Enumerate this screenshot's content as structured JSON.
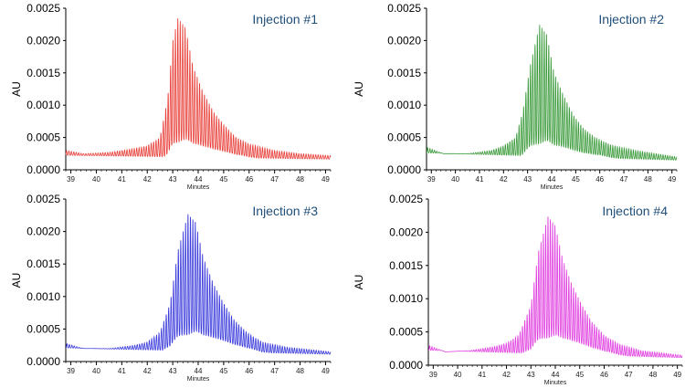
{
  "chart_data": [
    {
      "type": "line",
      "annotation": "Injection #1",
      "xlabel": "Minutes",
      "ylabel": "AU",
      "xlim": [
        38.8,
        49.2
      ],
      "ylim": [
        0,
        0.0025
      ],
      "xticks": [
        "39",
        "40",
        "41",
        "42",
        "43",
        "44",
        "45",
        "46",
        "47",
        "48",
        "49"
      ],
      "yticks": [
        "0.0000",
        "0.0005",
        "0.0010",
        "0.0015",
        "0.0020",
        "0.0025"
      ],
      "color": "#e8403a",
      "peak_x": 43.2,
      "peak_y": 0.00235,
      "baseline_start": 0.0003,
      "baseline_end": 0.00022,
      "x": [
        38.8,
        39.5,
        40.5,
        41.5,
        42.0,
        42.5,
        42.8,
        43.0,
        43.2,
        43.5,
        43.8,
        44.2,
        44.6,
        45.0,
        45.5,
        46.0,
        47.0,
        48.0,
        49.2
      ],
      "y": [
        0.0003,
        0.00025,
        0.00027,
        0.00033,
        0.00037,
        0.0005,
        0.0011,
        0.002,
        0.00235,
        0.0022,
        0.0016,
        0.0012,
        0.0009,
        0.0007,
        0.0005,
        0.0004,
        0.0003,
        0.00025,
        0.00022
      ]
    },
    {
      "type": "line",
      "annotation": "Injection #2",
      "xlabel": "Minutes",
      "ylabel": "AU",
      "xlim": [
        38.8,
        49.2
      ],
      "ylim": [
        0,
        0.0025
      ],
      "xticks": [
        "39",
        "40",
        "41",
        "42",
        "43",
        "44",
        "45",
        "46",
        "47",
        "48",
        "49"
      ],
      "yticks": [
        "0.0000",
        "0.0005",
        "0.0010",
        "0.0015",
        "0.0020",
        "0.0025"
      ],
      "color": "#3a9a3a",
      "peak_x": 43.5,
      "peak_y": 0.00225,
      "baseline_start": 0.00035,
      "baseline_end": 0.0002,
      "x": [
        38.8,
        39.5,
        40.5,
        41.5,
        42.0,
        42.5,
        42.8,
        43.1,
        43.5,
        43.8,
        44.1,
        44.5,
        44.9,
        45.3,
        45.8,
        46.5,
        47.5,
        48.5,
        49.2
      ],
      "y": [
        0.00035,
        0.00025,
        0.00025,
        0.0003,
        0.00037,
        0.0005,
        0.0009,
        0.0016,
        0.00225,
        0.0021,
        0.0015,
        0.00115,
        0.00085,
        0.00065,
        0.0005,
        0.00038,
        0.0003,
        0.00024,
        0.0002
      ]
    },
    {
      "type": "line",
      "annotation": "Injection #3",
      "xlabel": "Minutes",
      "ylabel": "AU",
      "xlim": [
        38.8,
        49.2
      ],
      "ylim": [
        0,
        0.0025
      ],
      "xticks": [
        "39",
        "40",
        "41",
        "42",
        "43",
        "44",
        "45",
        "46",
        "47",
        "48",
        "49"
      ],
      "yticks": [
        "0.0000",
        "0.0005",
        "0.0010",
        "0.0015",
        "0.0020",
        "0.0025"
      ],
      "color": "#3b3bdc",
      "peak_x": 43.6,
      "peak_y": 0.00228,
      "baseline_start": 0.00028,
      "baseline_end": 0.00015,
      "x": [
        38.8,
        39.5,
        40.5,
        41.5,
        42.0,
        42.5,
        42.9,
        43.2,
        43.6,
        43.9,
        44.2,
        44.6,
        45.0,
        45.4,
        45.9,
        46.5,
        47.5,
        48.5,
        49.2
      ],
      "y": [
        0.00028,
        0.0002,
        0.0002,
        0.00025,
        0.0003,
        0.00045,
        0.0009,
        0.0017,
        0.00228,
        0.00215,
        0.0016,
        0.0012,
        0.0009,
        0.00065,
        0.00045,
        0.0003,
        0.00022,
        0.00018,
        0.00015
      ]
    },
    {
      "type": "line",
      "annotation": "Injection #4",
      "xlabel": "Minutes",
      "ylabel": "AU",
      "xlim": [
        38.8,
        49.2
      ],
      "ylim": [
        0,
        0.0025
      ],
      "xticks": [
        "39",
        "40",
        "41",
        "42",
        "43",
        "44",
        "45",
        "46",
        "47",
        "48",
        "49"
      ],
      "yticks": [
        "0.0000",
        "0.0005",
        "0.0010",
        "0.0015",
        "0.0020",
        "0.0025"
      ],
      "color": "#e040e0",
      "peak_x": 43.7,
      "peak_y": 0.00225,
      "baseline_start": 0.0003,
      "baseline_end": 0.00015,
      "x": [
        38.8,
        39.5,
        40.5,
        41.5,
        42.0,
        42.5,
        43.0,
        43.3,
        43.7,
        44.0,
        44.3,
        44.7,
        45.1,
        45.5,
        46.0,
        46.6,
        47.5,
        48.5,
        49.2
      ],
      "y": [
        0.0003,
        0.0002,
        0.00022,
        0.00028,
        0.00033,
        0.00045,
        0.0009,
        0.0017,
        0.00225,
        0.0021,
        0.0016,
        0.0012,
        0.0009,
        0.00065,
        0.00045,
        0.00032,
        0.00022,
        0.00018,
        0.00015
      ]
    }
  ]
}
